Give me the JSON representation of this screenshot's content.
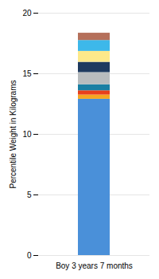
{
  "chart_data": {
    "type": "bar",
    "stacked": true,
    "categories": [
      "Boy 3 years 7 months"
    ],
    "ylabel": "Percentile Weight in Kilograms",
    "series": [
      {
        "color": "#4a90d9",
        "values": [
          12.9
        ]
      },
      {
        "color": "#f5a623",
        "values": [
          0.35
        ]
      },
      {
        "color": "#e8401c",
        "values": [
          0.35
        ]
      },
      {
        "color": "#1a7fa3",
        "values": [
          0.5
        ]
      },
      {
        "color": "#b8bcbe",
        "values": [
          1.0
        ]
      },
      {
        "color": "#1e3a5f",
        "values": [
          0.85
        ]
      },
      {
        "color": "#fde98a",
        "values": [
          0.9
        ]
      },
      {
        "color": "#3db8ea",
        "values": [
          0.9
        ]
      },
      {
        "color": "#b5705b",
        "values": [
          0.6
        ]
      }
    ],
    "ylim": [
      0,
      20
    ],
    "yticks": [
      0,
      5,
      10,
      15,
      20
    ],
    "grid": true
  }
}
